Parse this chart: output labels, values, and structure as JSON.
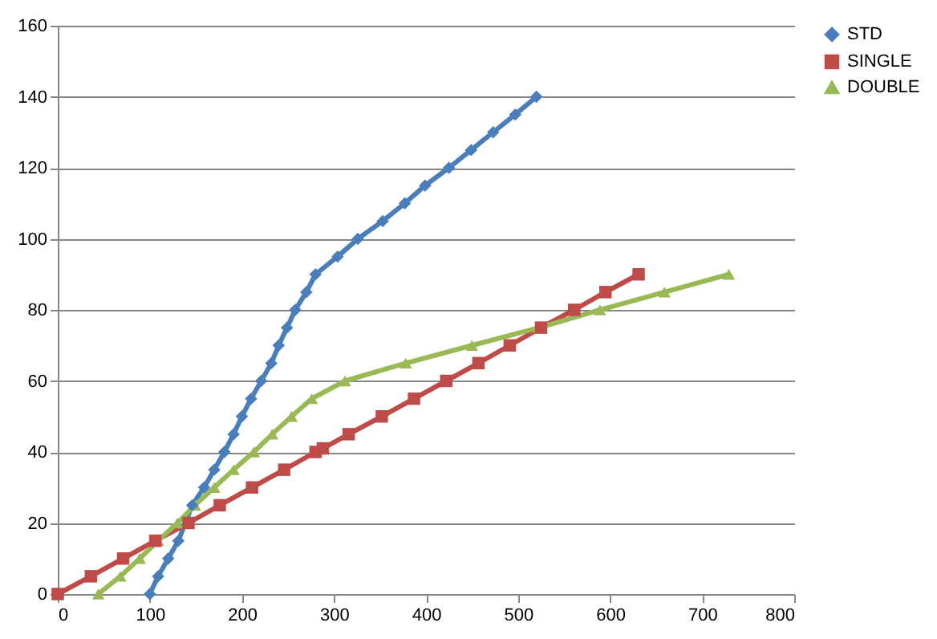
{
  "chart_data": {
    "type": "line",
    "xlim": [
      0,
      800
    ],
    "xticks": [
      0,
      100,
      200,
      300,
      400,
      500,
      600,
      700,
      800
    ],
    "ylim": [
      0,
      160
    ],
    "yticks": [
      0,
      20,
      40,
      60,
      80,
      100,
      120,
      140,
      160
    ],
    "grid": "y",
    "legend": "right",
    "series": [
      {
        "name": "STD",
        "color": "#4a7ebb",
        "marker": "diamond",
        "x": [
          100,
          109,
          120,
          131,
          146,
          159,
          170,
          181,
          191,
          200,
          210,
          221,
          232,
          240,
          249,
          258,
          270,
          280,
          304,
          326,
          353,
          377,
          399,
          425,
          449,
          473,
          497,
          520
        ],
        "values": [
          0,
          5,
          10,
          15,
          25,
          30,
          35,
          40,
          45,
          50,
          55,
          60,
          65,
          70,
          75,
          80,
          85,
          90,
          95,
          100,
          105,
          110,
          115,
          120,
          125,
          130,
          135,
          140
        ]
      },
      {
        "name": "SINGLE",
        "color": "#be4b48",
        "marker": "square",
        "x": [
          0,
          36,
          71,
          106,
          142,
          176,
          211,
          246,
          280,
          288,
          316,
          352,
          387,
          422,
          457,
          491,
          525,
          561,
          595,
          631
        ],
        "values": [
          0,
          5,
          10,
          15,
          20,
          25,
          30,
          35,
          40,
          41,
          45,
          50,
          55,
          60,
          65,
          70,
          75,
          80,
          85,
          90
        ]
      },
      {
        "name": "DOUBLE",
        "color": "#98b954",
        "marker": "triangle",
        "x": [
          44,
          68,
          89,
          109,
          130,
          149,
          170,
          191,
          213,
          233,
          254,
          276,
          312,
          378,
          450,
          523,
          589,
          659,
          729
        ],
        "values": [
          0,
          5,
          10,
          15,
          20,
          25,
          30,
          35,
          40,
          45,
          50,
          55,
          60,
          65,
          70,
          75,
          80,
          85,
          90
        ]
      }
    ]
  }
}
